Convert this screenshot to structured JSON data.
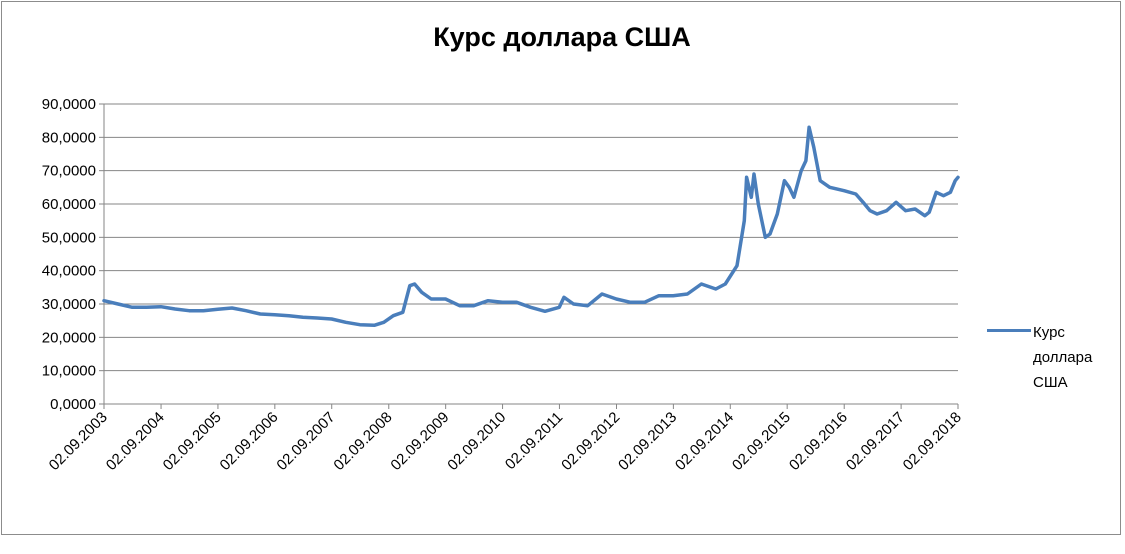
{
  "chart_data": {
    "type": "line",
    "title": "Курс доллара США",
    "xlabel": "",
    "ylabel": "",
    "ylim": [
      0,
      90
    ],
    "y_ticks": [
      "0,0000",
      "10,0000",
      "20,0000",
      "30,0000",
      "40,0000",
      "50,0000",
      "60,0000",
      "70,0000",
      "80,0000",
      "90,0000"
    ],
    "x_ticks": [
      "02.09.2003",
      "02.09.2004",
      "02.09.2005",
      "02.09.2006",
      "02.09.2007",
      "02.09.2008",
      "02.09.2009",
      "02.09.2010",
      "02.09.2011",
      "02.09.2012",
      "02.09.2013",
      "02.09.2014",
      "02.09.2015",
      "02.09.2016",
      "02.09.2017",
      "02.09.2018"
    ],
    "grid": true,
    "legend_position": "right",
    "series": [
      {
        "name": "Курс доллара США",
        "color": "#4a7ebb",
        "x": [
          "2003-09-02",
          "2003-12-01",
          "2004-03-01",
          "2004-06-01",
          "2004-09-01",
          "2004-12-01",
          "2005-03-01",
          "2005-06-01",
          "2005-09-01",
          "2005-12-01",
          "2006-03-01",
          "2006-06-01",
          "2006-09-01",
          "2006-12-01",
          "2007-03-01",
          "2007-06-01",
          "2007-09-01",
          "2007-12-01",
          "2008-03-01",
          "2008-06-01",
          "2008-08-01",
          "2008-10-01",
          "2008-12-01",
          "2009-01-15",
          "2009-02-15",
          "2009-04-01",
          "2009-06-01",
          "2009-09-01",
          "2009-12-01",
          "2010-03-01",
          "2010-06-01",
          "2010-09-01",
          "2010-12-01",
          "2011-03-01",
          "2011-06-01",
          "2011-09-01",
          "2011-10-01",
          "2011-12-01",
          "2012-03-01",
          "2012-06-01",
          "2012-09-01",
          "2012-12-01",
          "2013-03-01",
          "2013-06-01",
          "2013-09-01",
          "2013-12-01",
          "2014-03-01",
          "2014-06-01",
          "2014-08-01",
          "2014-10-15",
          "2014-12-01",
          "2014-12-16",
          "2015-01-15",
          "2015-02-01",
          "2015-03-01",
          "2015-04-15",
          "2015-05-15",
          "2015-07-01",
          "2015-08-15",
          "2015-09-15",
          "2015-10-15",
          "2015-12-01",
          "2015-12-31",
          "2016-01-21",
          "2016-02-20",
          "2016-04-01",
          "2016-06-01",
          "2016-09-01",
          "2016-11-15",
          "2017-01-01",
          "2017-02-15",
          "2017-04-01",
          "2017-06-01",
          "2017-08-01",
          "2017-10-01",
          "2017-12-01",
          "2018-02-01",
          "2018-03-01",
          "2018-04-15",
          "2018-06-01",
          "2018-07-15",
          "2018-08-15",
          "2018-09-02"
        ],
        "values": [
          31.0,
          30.0,
          29.0,
          29.0,
          29.2,
          28.5,
          28.0,
          28.0,
          28.4,
          28.8,
          28.0,
          27.0,
          26.8,
          26.5,
          26.0,
          25.8,
          25.5,
          24.5,
          23.8,
          23.6,
          24.5,
          26.5,
          27.5,
          35.5,
          36.0,
          33.5,
          31.5,
          31.5,
          29.5,
          29.5,
          31.0,
          30.5,
          30.5,
          29.0,
          27.8,
          29.0,
          32.0,
          30.0,
          29.5,
          33.0,
          31.5,
          30.5,
          30.5,
          32.5,
          32.5,
          33.0,
          36.0,
          34.5,
          36.0,
          41.5,
          55.0,
          68.0,
          62.0,
          69.0,
          60.0,
          50.0,
          51.0,
          57.0,
          67.0,
          65.0,
          62.0,
          70.0,
          73.0,
          83.0,
          77.0,
          67.0,
          65.0,
          64.0,
          63.0,
          60.5,
          58.0,
          57.0,
          58.0,
          60.5,
          58.0,
          58.5,
          56.5,
          57.5,
          63.5,
          62.5,
          63.5,
          67.0,
          68.0
        ]
      }
    ]
  }
}
